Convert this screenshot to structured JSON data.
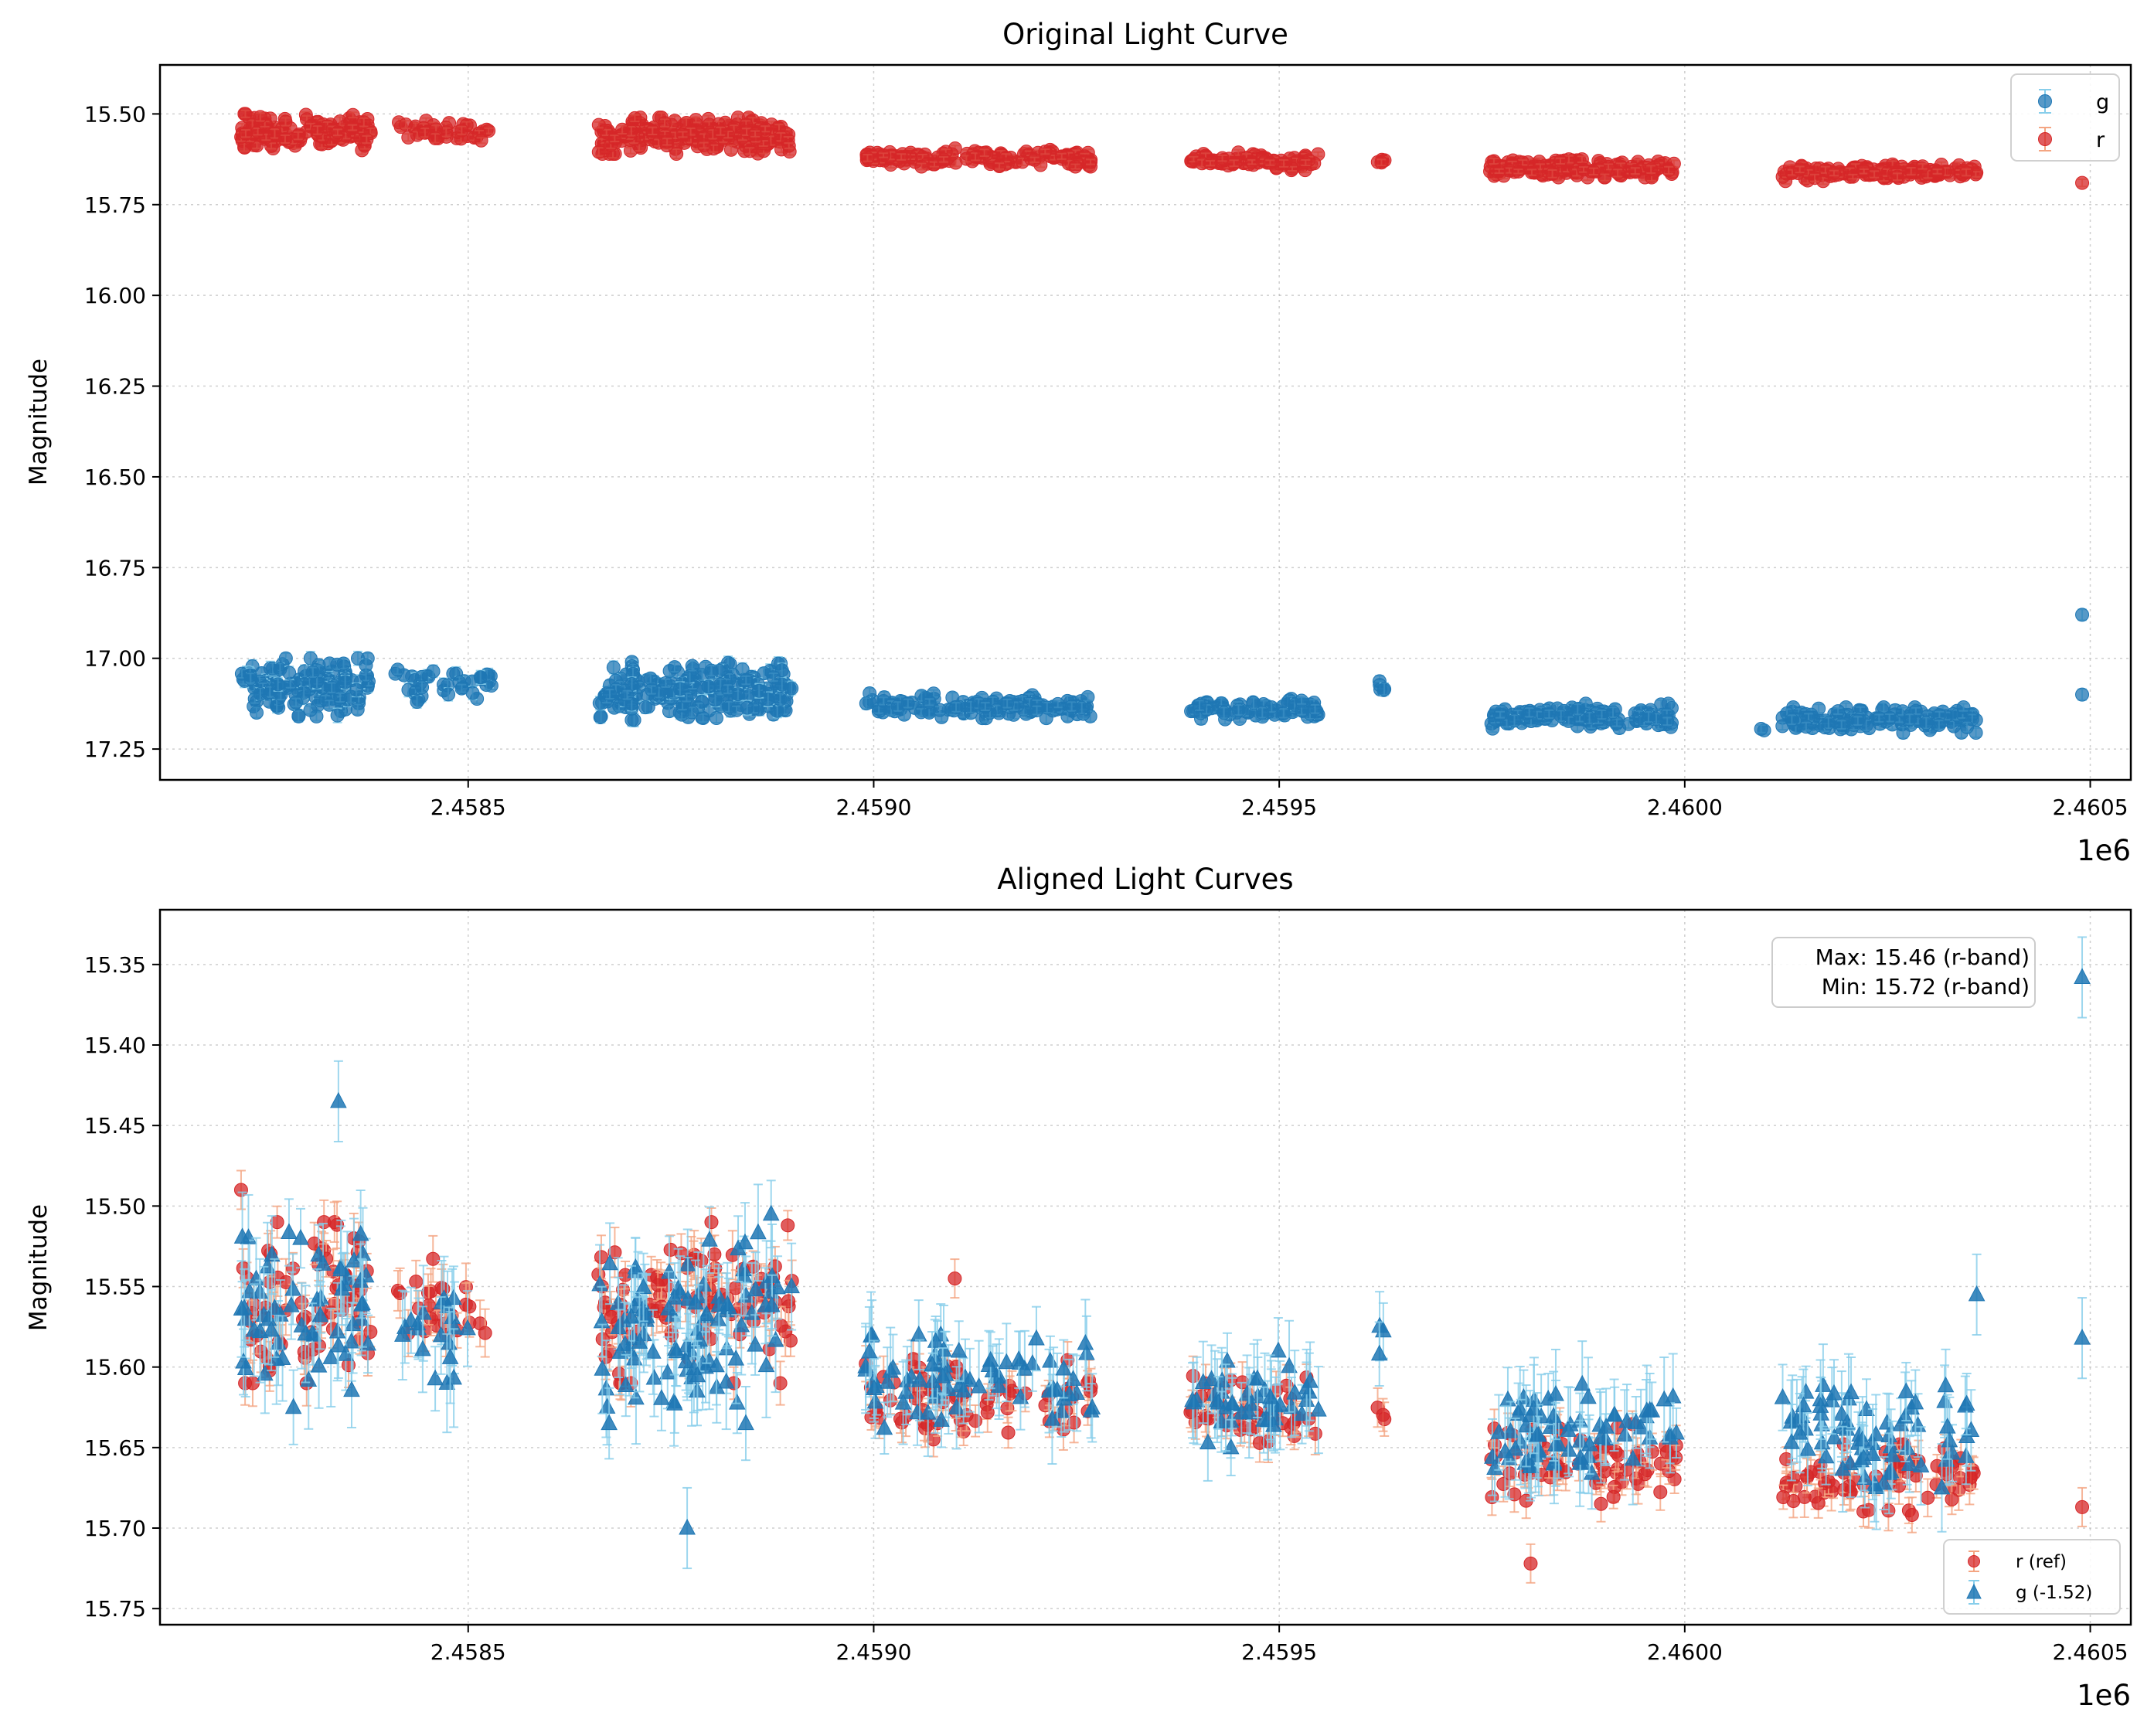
{
  "chart_data": [
    {
      "type": "scatter",
      "title": "Original Light Curve",
      "xlabel": "",
      "ylabel": "Magnitude",
      "x_offset_label": "1e6",
      "xlim": [
        2.45812,
        2.46055
      ],
      "ylim": [
        17.335,
        15.365
      ],
      "y_inverted": true,
      "grid": true,
      "x_ticks": [
        2.4585,
        2.459,
        2.4595,
        2.46,
        2.4605
      ],
      "x_tick_labels": [
        "2.4585",
        "2.4590",
        "2.4595",
        "2.4600",
        "2.4605"
      ],
      "y_ticks": [
        15.5,
        15.75,
        16.0,
        16.25,
        16.5,
        16.75,
        17.0,
        17.25
      ],
      "y_tick_labels": [
        "15.50",
        "15.75",
        "16.00",
        "16.25",
        "16.50",
        "16.75",
        "17.00",
        "17.25"
      ],
      "legend": {
        "location": "top-right",
        "entries": [
          "g",
          "r"
        ]
      },
      "series": [
        {
          "name": "g",
          "marker": "circle",
          "color": "#1f77b4",
          "errcolor": "#87ceeb",
          "segments": [
            {
              "x0": 2.45822,
              "x1": 2.45838,
              "center": 17.08,
              "spread": 0.08,
              "n": 140,
              "err": 0.015
            },
            {
              "x0": 2.45841,
              "x1": 2.45853,
              "center": 17.07,
              "spread": 0.05,
              "n": 40,
              "err": 0.015
            },
            {
              "x0": 2.45866,
              "x1": 2.4589,
              "center": 17.09,
              "spread": 0.08,
              "n": 230,
              "err": 0.015
            },
            {
              "x0": 2.45899,
              "x1": 2.45927,
              "center": 17.13,
              "spread": 0.035,
              "n": 150,
              "err": 0.012
            },
            {
              "x0": 2.45939,
              "x1": 2.45955,
              "center": 17.14,
              "spread": 0.03,
              "n": 90,
              "err": 0.012
            },
            {
              "x0": 2.45962,
              "x1": 2.45963,
              "center": 17.09,
              "spread": 0.04,
              "n": 5,
              "err": 0.015
            },
            {
              "x0": 2.45976,
              "x1": 2.45999,
              "center": 17.16,
              "spread": 0.035,
              "n": 150,
              "err": 0.012
            },
            {
              "x0": 2.46009,
              "x1": 2.4601,
              "center": 17.2,
              "spread": 0.01,
              "n": 2,
              "err": 0.012
            },
            {
              "x0": 2.46012,
              "x1": 2.46036,
              "center": 17.17,
              "spread": 0.035,
              "n": 150,
              "err": 0.012
            }
          ],
          "points": [
            [
              2.46049,
              16.88
            ],
            [
              2.46049,
              17.1
            ]
          ]
        },
        {
          "name": "r",
          "marker": "circle",
          "color": "#d62728",
          "errcolor": "#f4a582",
          "segments": [
            {
              "x0": 2.45822,
              "x1": 2.45838,
              "center": 15.55,
              "spread": 0.05,
              "n": 140,
              "err": 0.01
            },
            {
              "x0": 2.45841,
              "x1": 2.45853,
              "center": 15.55,
              "spread": 0.035,
              "n": 40,
              "err": 0.01
            },
            {
              "x0": 2.45866,
              "x1": 2.4589,
              "center": 15.56,
              "spread": 0.05,
              "n": 230,
              "err": 0.01
            },
            {
              "x0": 2.45899,
              "x1": 2.45927,
              "center": 15.62,
              "spread": 0.025,
              "n": 150,
              "err": 0.008
            },
            {
              "x0": 2.45939,
              "x1": 2.45955,
              "center": 15.63,
              "spread": 0.025,
              "n": 90,
              "err": 0.008
            },
            {
              "x0": 2.45962,
              "x1": 2.45963,
              "center": 15.63,
              "spread": 0.01,
              "n": 5,
              "err": 0.008
            },
            {
              "x0": 2.45976,
              "x1": 2.45999,
              "center": 15.65,
              "spread": 0.025,
              "n": 150,
              "err": 0.008
            },
            {
              "x0": 2.46012,
              "x1": 2.46036,
              "center": 15.66,
              "spread": 0.025,
              "n": 150,
              "err": 0.008
            }
          ],
          "points": [
            [
              2.46049,
              15.69
            ]
          ]
        }
      ]
    },
    {
      "type": "scatter",
      "title": "Aligned Light Curves",
      "xlabel": "",
      "ylabel": "Magnitude",
      "x_offset_label": "1e6",
      "xlim": [
        2.45812,
        2.46055
      ],
      "ylim": [
        15.76,
        15.316
      ],
      "y_inverted": true,
      "grid": true,
      "x_ticks": [
        2.4585,
        2.459,
        2.4595,
        2.46,
        2.4605
      ],
      "x_tick_labels": [
        "2.4585",
        "2.4590",
        "2.4595",
        "2.4600",
        "2.4605"
      ],
      "y_ticks": [
        15.35,
        15.4,
        15.45,
        15.5,
        15.55,
        15.6,
        15.65,
        15.7,
        15.75
      ],
      "y_tick_labels": [
        "15.35",
        "15.40",
        "15.45",
        "15.50",
        "15.55",
        "15.60",
        "15.65",
        "15.70",
        "15.75"
      ],
      "legend": {
        "location": "bottom-right",
        "entries": [
          "r (ref)",
          "g (-1.52)"
        ]
      },
      "annotation": {
        "location": "top-right",
        "lines": [
          "Max: 15.46 (r-band)",
          "Min: 15.72 (r-band)"
        ]
      },
      "series": [
        {
          "name": "r (ref)",
          "marker": "circle",
          "color": "#d62728",
          "errcolor": "#f4a582",
          "segments": [
            {
              "x0": 2.45822,
              "x1": 2.45838,
              "center": 15.56,
              "spread": 0.05,
              "n": 70,
              "err": 0.012
            },
            {
              "x0": 2.45841,
              "x1": 2.45853,
              "center": 15.56,
              "spread": 0.035,
              "n": 25,
              "err": 0.012
            },
            {
              "x0": 2.45866,
              "x1": 2.4589,
              "center": 15.56,
              "spread": 0.05,
              "n": 100,
              "err": 0.012
            },
            {
              "x0": 2.45899,
              "x1": 2.45927,
              "center": 15.62,
              "spread": 0.025,
              "n": 70,
              "err": 0.01
            },
            {
              "x0": 2.45939,
              "x1": 2.45955,
              "center": 15.63,
              "spread": 0.025,
              "n": 45,
              "err": 0.01
            },
            {
              "x0": 2.45962,
              "x1": 2.45963,
              "center": 15.63,
              "spread": 0.008,
              "n": 3,
              "err": 0.01
            },
            {
              "x0": 2.45976,
              "x1": 2.45999,
              "center": 15.66,
              "spread": 0.025,
              "n": 70,
              "err": 0.01
            },
            {
              "x0": 2.46012,
              "x1": 2.46036,
              "center": 15.67,
              "spread": 0.022,
              "n": 70,
              "err": 0.01
            }
          ],
          "points": [
            [
              2.46049,
              15.687
            ],
            [
              2.45822,
              15.49
            ],
            [
              2.45981,
              15.722
            ],
            [
              2.4591,
              15.545
            ]
          ]
        },
        {
          "name": "g (-1.52)",
          "marker": "triangle",
          "color": "#1f77b4",
          "errcolor": "#87ceeb",
          "segments": [
            {
              "x0": 2.45822,
              "x1": 2.45838,
              "center": 15.56,
              "spread": 0.065,
              "n": 60,
              "err": 0.025
            },
            {
              "x0": 2.45841,
              "x1": 2.45853,
              "center": 15.57,
              "spread": 0.04,
              "n": 20,
              "err": 0.025
            },
            {
              "x0": 2.45866,
              "x1": 2.4589,
              "center": 15.57,
              "spread": 0.065,
              "n": 100,
              "err": 0.025
            },
            {
              "x0": 2.45899,
              "x1": 2.45927,
              "center": 15.61,
              "spread": 0.03,
              "n": 70,
              "err": 0.022
            },
            {
              "x0": 2.45939,
              "x1": 2.45955,
              "center": 15.62,
              "spread": 0.03,
              "n": 45,
              "err": 0.022
            },
            {
              "x0": 2.45962,
              "x1": 2.45963,
              "center": 15.58,
              "spread": 0.025,
              "n": 3,
              "err": 0.022
            },
            {
              "x0": 2.45976,
              "x1": 2.45999,
              "center": 15.64,
              "spread": 0.03,
              "n": 70,
              "err": 0.022
            },
            {
              "x0": 2.46012,
              "x1": 2.46036,
              "center": 15.64,
              "spread": 0.035,
              "n": 70,
              "err": 0.022
            }
          ],
          "points": [
            [
              2.46049,
              15.358
            ],
            [
              2.46049,
              15.582
            ],
            [
              2.45834,
              15.435
            ],
            [
              2.45877,
              15.7
            ],
            [
              2.46036,
              15.555
            ]
          ]
        }
      ]
    }
  ]
}
